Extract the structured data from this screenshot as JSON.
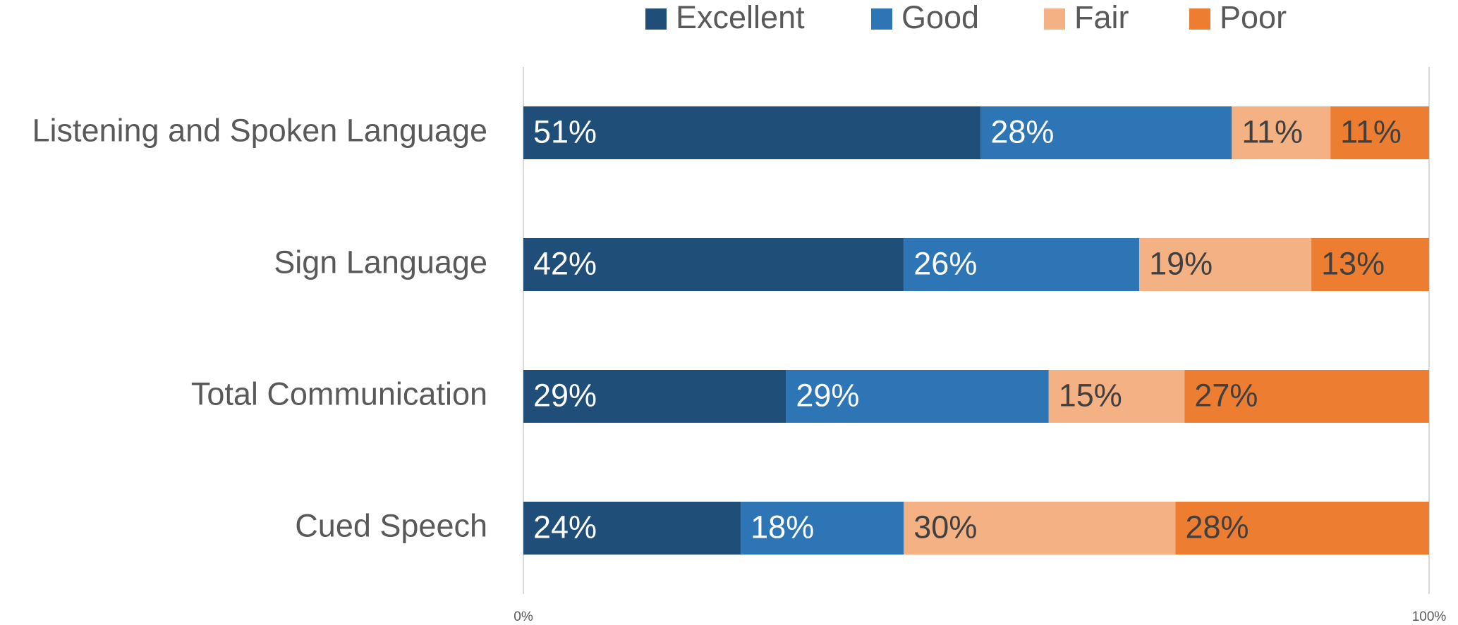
{
  "chart_data": {
    "type": "bar",
    "orientation": "horizontal",
    "stacked": "percent",
    "categories": [
      "Listening and Spoken Language",
      "Sign Language",
      "Total Communication",
      "Cued Speech"
    ],
    "series": [
      {
        "name": "Excellent",
        "color": "#1f4e79",
        "label_color": "#ffffff",
        "values": [
          51,
          42,
          29,
          24
        ],
        "value_labels": [
          "51%",
          "42%",
          "29%",
          "24%"
        ]
      },
      {
        "name": "Good",
        "color": "#2e75b6",
        "label_color": "#ffffff",
        "values": [
          28,
          26,
          29,
          18
        ],
        "value_labels": [
          "28%",
          "26%",
          "29%",
          "18%"
        ]
      },
      {
        "name": "Fair",
        "color": "#f4b183",
        "label_color": "#404040",
        "values": [
          11,
          19,
          15,
          30
        ],
        "value_labels": [
          "11%",
          "19%",
          "15%",
          "30%"
        ]
      },
      {
        "name": "Poor",
        "color": "#ed7d31",
        "label_color": "#404040",
        "values": [
          11,
          13,
          27,
          28
        ],
        "value_labels": [
          "11%",
          "13%",
          "27%",
          "28%"
        ]
      }
    ],
    "xlim": [
      0,
      100
    ],
    "xticks": [
      {
        "value": 0,
        "label": "0%"
      },
      {
        "value": 100,
        "label": "100%"
      }
    ],
    "grid": true,
    "legend": "top"
  }
}
